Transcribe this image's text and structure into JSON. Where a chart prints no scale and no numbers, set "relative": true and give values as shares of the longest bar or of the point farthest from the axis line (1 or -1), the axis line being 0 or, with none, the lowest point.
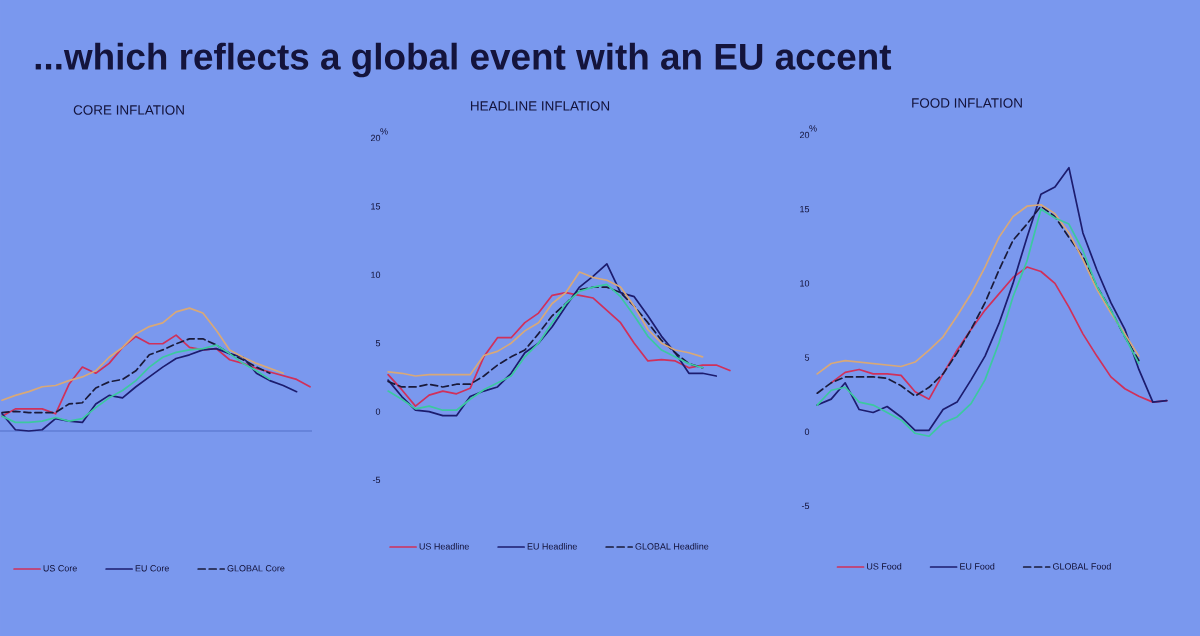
{
  "chart_data": [
    {
      "type": "line",
      "title": "...which reflects a global event with an EU accent",
      "subtitle": "CORE INFLATION",
      "relative": true,
      "legend": "bottom",
      "categories": [
        null,
        null,
        null,
        null,
        null,
        null,
        null,
        null,
        null,
        null,
        null,
        null,
        null,
        null,
        null,
        null,
        null,
        null,
        null,
        null,
        null,
        null,
        null,
        null
      ],
      "series": [
        {
          "name": "US Core",
          "color": "#d0305a",
          "values": [
            0.12,
            0.18,
            0.18,
            0.18,
            0.14,
            0.38,
            0.52,
            0.47,
            0.55,
            0.68,
            0.77,
            0.71,
            0.71,
            0.78,
            0.68,
            0.66,
            0.67,
            0.58,
            0.55,
            0.51,
            0.48,
            0.45,
            0.42,
            0.36
          ]
        },
        {
          "name": "EU Core",
          "color": "#1c1c6e",
          "values": [
            0.14,
            0.01,
            0.0,
            0.01,
            0.1,
            0.08,
            0.07,
            0.22,
            0.29,
            0.27,
            0.36,
            0.44,
            0.52,
            0.59,
            0.62,
            0.66,
            0.67,
            0.63,
            0.6,
            0.47,
            0.41,
            0.37,
            0.32,
            null
          ]
        },
        {
          "name": "GLOBAL Core",
          "color": "#1a1a3a",
          "line_style": "dashed",
          "values": [
            0.15,
            0.16,
            0.15,
            0.15,
            0.15,
            0.22,
            0.23,
            0.35,
            0.4,
            0.42,
            0.49,
            0.62,
            0.66,
            0.71,
            0.75,
            0.75,
            0.7,
            0.63,
            0.58,
            0.52,
            0.47,
            null,
            null,
            null
          ]
        },
        {
          "color": "#d8a878",
          "values": [
            0.25,
            0.29,
            0.32,
            0.36,
            0.37,
            0.41,
            0.44,
            0.49,
            0.6,
            0.68,
            0.79,
            0.85,
            0.88,
            0.97,
            1.0,
            0.96,
            0.82,
            0.66,
            0.6,
            0.55,
            0.51,
            0.47,
            null,
            null
          ]
        },
        {
          "color": "#3cc8a0",
          "values": [
            0.12,
            0.07,
            0.07,
            0.08,
            0.11,
            0.08,
            0.1,
            0.19,
            0.27,
            0.33,
            0.41,
            0.52,
            0.6,
            0.64,
            0.66,
            0.67,
            0.7,
            0.63,
            0.55,
            0.49,
            0.42,
            null,
            null,
            null
          ]
        }
      ]
    },
    {
      "type": "line",
      "subtitle": "HEADLINE INFLATION",
      "ylabel": "%",
      "ylim": [
        -5,
        20
      ],
      "yticks": [
        -5,
        0,
        5,
        10,
        15,
        20
      ],
      "legend": "bottom",
      "categories": [
        null,
        null,
        null,
        null,
        null,
        null,
        null,
        null,
        null,
        null,
        null,
        null,
        null,
        null,
        null,
        null,
        null,
        null,
        null,
        null,
        null,
        null,
        null,
        null,
        null,
        null
      ],
      "series": [
        {
          "name": "US Headline",
          "color": "#d0305a",
          "values": [
            2.7,
            1.6,
            0.4,
            1.2,
            1.5,
            1.3,
            1.7,
            4.0,
            5.4,
            5.4,
            6.5,
            7.2,
            8.5,
            8.7,
            8.5,
            8.3,
            7.4,
            6.5,
            5.0,
            3.7,
            3.8,
            3.7,
            3.2,
            3.4,
            3.4,
            3.0
          ]
        },
        {
          "name": "EU Headline",
          "color": "#1c1c6e",
          "values": [
            2.3,
            1.1,
            0.1,
            0.0,
            -0.3,
            -0.3,
            1.1,
            1.5,
            1.8,
            2.8,
            4.3,
            5.0,
            6.2,
            7.7,
            9.1,
            9.9,
            10.8,
            8.7,
            8.4,
            7.0,
            5.5,
            4.3,
            2.8,
            2.8,
            2.6,
            null
          ]
        },
        {
          "name": "GLOBAL Headline",
          "color": "#1a1a3a",
          "line_style": "dashed",
          "values": [
            2.2,
            1.8,
            1.8,
            2.0,
            1.8,
            2.0,
            2.0,
            2.6,
            3.4,
            4.0,
            4.5,
            5.7,
            7.0,
            7.9,
            8.9,
            9.1,
            9.1,
            8.7,
            7.7,
            6.5,
            5.2,
            4.3,
            3.5,
            3.2,
            null,
            null
          ]
        },
        {
          "color": "#d8a878",
          "values": [
            2.9,
            2.8,
            2.6,
            2.7,
            2.7,
            2.7,
            2.7,
            4.1,
            4.4,
            5.0,
            5.9,
            6.5,
            7.9,
            8.7,
            10.2,
            9.8,
            9.6,
            9.1,
            7.7,
            6.0,
            5.0,
            4.5,
            4.3,
            4.0,
            null,
            null
          ]
        },
        {
          "color": "#3cc8a0",
          "values": [
            1.5,
            0.9,
            0.2,
            0.4,
            0.1,
            0.1,
            0.9,
            1.6,
            2.1,
            2.6,
            4.0,
            5.0,
            6.5,
            7.9,
            8.8,
            9.1,
            9.3,
            8.4,
            7.0,
            5.5,
            4.5,
            4.0,
            3.5,
            3.2,
            null,
            null
          ]
        }
      ]
    },
    {
      "type": "line",
      "subtitle": "FOOD INFLATION",
      "ylabel": "%",
      "ylim": [
        -5,
        20
      ],
      "yticks": [
        -5,
        0,
        5,
        10,
        15,
        20
      ],
      "legend": "bottom",
      "categories": [
        null,
        null,
        null,
        null,
        null,
        null,
        null,
        null,
        null,
        null,
        null,
        null,
        null,
        null,
        null,
        null,
        null,
        null,
        null,
        null,
        null,
        null,
        null,
        null,
        null,
        null
      ],
      "series": [
        {
          "name": "US Food",
          "color": "#d0305a",
          "values": [
            null,
            3.3,
            4.0,
            4.2,
            3.9,
            3.9,
            3.8,
            2.7,
            2.2,
            3.9,
            5.5,
            6.9,
            8.2,
            9.3,
            10.4,
            11.1,
            10.8,
            10.0,
            8.4,
            6.6,
            5.1,
            3.7,
            2.9,
            2.4,
            2.0,
            2.1
          ]
        },
        {
          "name": "EU Food",
          "color": "#1c1c6e",
          "values": [
            1.8,
            2.2,
            3.3,
            1.5,
            1.3,
            1.7,
            1.0,
            0.1,
            0.1,
            1.5,
            2.0,
            3.5,
            5.1,
            7.3,
            10.0,
            13.1,
            16.0,
            16.5,
            17.8,
            13.4,
            10.9,
            8.7,
            6.9,
            4.2,
            2.0,
            2.1
          ]
        },
        {
          "name": "GLOBAL Food",
          "color": "#1a1a3a",
          "line_style": "dashed",
          "values": [
            2.6,
            3.3,
            3.7,
            3.7,
            3.7,
            3.6,
            3.1,
            2.4,
            3.0,
            3.9,
            5.3,
            6.9,
            8.7,
            10.9,
            12.9,
            14.0,
            15.2,
            14.5,
            13.1,
            11.8,
            9.8,
            8.2,
            6.4,
            4.8,
            null,
            null
          ]
        },
        {
          "color": "#d8a878",
          "values": [
            3.9,
            4.6,
            4.8,
            4.7,
            4.6,
            4.5,
            4.4,
            4.7,
            5.5,
            6.4,
            7.8,
            9.3,
            11.1,
            13.1,
            14.5,
            15.2,
            15.3,
            14.7,
            13.4,
            11.6,
            9.6,
            8.0,
            6.6,
            5.1,
            null,
            null
          ]
        },
        {
          "color": "#3cc8a0",
          "values": [
            1.8,
            2.8,
            3.0,
            2.0,
            1.8,
            1.3,
            0.8,
            -0.1,
            -0.3,
            0.6,
            1.0,
            1.9,
            3.5,
            6.0,
            9.1,
            11.5,
            15.0,
            14.4,
            14.0,
            12.2,
            9.8,
            8.2,
            6.4,
            4.6,
            null,
            null
          ]
        }
      ]
    }
  ]
}
